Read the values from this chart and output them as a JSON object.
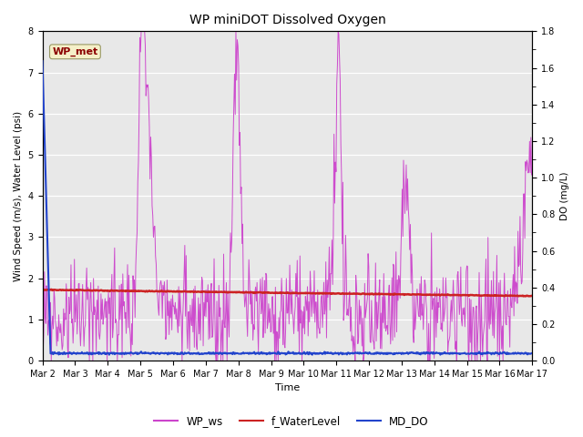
{
  "title": "WP miniDOT Dissolved Oxygen",
  "xlabel": "Time",
  "ylabel_left": "Wind Speed (m/s), Water Level (psi)",
  "ylabel_right": "DO (mg/L)",
  "ylim_left": [
    0.0,
    8.0
  ],
  "ylim_right": [
    0.0,
    1.8
  ],
  "yticks_left": [
    0.0,
    1.0,
    2.0,
    3.0,
    4.0,
    5.0,
    6.0,
    7.0,
    8.0
  ],
  "yticks_right": [
    0.0,
    0.2,
    0.4,
    0.6,
    0.8,
    1.0,
    1.2,
    1.4,
    1.6,
    1.8
  ],
  "bg_color": "#e8e8e8",
  "box_color": "#f5f0c8",
  "box_text": "WP_met",
  "box_text_color": "#8b0000",
  "legend_labels": [
    "WP_ws",
    "f_WaterLevel",
    "MD_DO"
  ],
  "wp_ws_color": "#cc44cc",
  "f_wl_color": "#cc2222",
  "md_do_color": "#2244cc",
  "n_points": 720,
  "title_fontsize": 10,
  "tick_fontsize": 7,
  "label_fontsize": 7.5,
  "xlabel_fontsize": 8
}
